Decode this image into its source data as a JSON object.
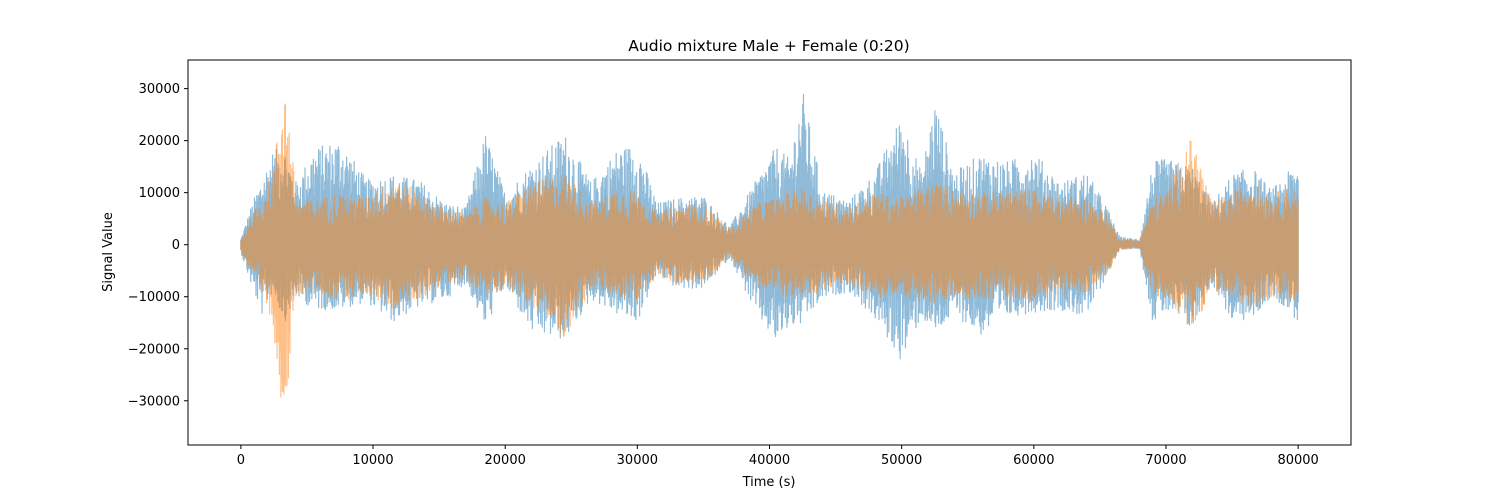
{
  "chart_data": {
    "type": "line",
    "title": "Audio mixture Male + Female (0:20)",
    "xlabel": "Time (s)",
    "ylabel": "Signal Value",
    "xlim": [
      -4000,
      84000
    ],
    "ylim": [
      -38500,
      35500
    ],
    "xticks": [
      0,
      10000,
      20000,
      30000,
      40000,
      50000,
      60000,
      70000,
      80000
    ],
    "yticks": [
      -30000,
      -20000,
      -10000,
      0,
      10000,
      20000,
      30000
    ],
    "grid": false,
    "legend": "none",
    "series": [
      {
        "color": "#1f77b4",
        "opacity": 0.5,
        "envelope_x": [
          0,
          800,
          1600,
          2400,
          3300,
          4200,
          5500,
          7500,
          9500,
          11500,
          13500,
          15500,
          17000,
          18500,
          20000,
          22000,
          24500,
          26500,
          28500,
          30000,
          31500,
          33000,
          35000,
          37000,
          39000,
          40500,
          41500,
          42500,
          44000,
          46000,
          48000,
          50000,
          51500,
          52500,
          54000,
          56000,
          58000,
          60000,
          62000,
          64000,
          65500,
          66500,
          68000,
          69000,
          70000,
          72000,
          73500,
          75000,
          76500,
          78000,
          79000,
          80000
        ],
        "envelope_max": [
          1200,
          7500,
          13000,
          18000,
          19000,
          12000,
          18500,
          20500,
          12500,
          13500,
          12500,
          8000,
          7000,
          21500,
          10000,
          15500,
          21500,
          12000,
          18500,
          19500,
          8000,
          9000,
          9500,
          3500,
          12500,
          19000,
          16500,
          30000,
          10500,
          8500,
          14000,
          25000,
          14000,
          28000,
          14000,
          17500,
          16000,
          18000,
          12000,
          14000,
          7500,
          1500,
          1000,
          16000,
          16500,
          15000,
          8000,
          13500,
          15000,
          10500,
          13500,
          15500
        ],
        "envelope_min": [
          -1500,
          -8000,
          -13500,
          -9000,
          -15000,
          -10000,
          -12500,
          -12500,
          -11000,
          -15000,
          -12000,
          -10500,
          -7500,
          -16000,
          -8000,
          -17000,
          -18500,
          -10500,
          -13500,
          -15000,
          -5500,
          -8500,
          -8500,
          -2500,
          -13500,
          -19000,
          -16000,
          -15500,
          -10500,
          -9000,
          -14500,
          -22500,
          -14000,
          -17500,
          -13500,
          -17500,
          -14000,
          -13000,
          -12500,
          -14000,
          -6000,
          -900,
          -700,
          -15000,
          -13000,
          -16500,
          -7500,
          -15000,
          -14500,
          -10000,
          -12000,
          -15000
        ]
      },
      {
        "color": "#ff7f0e",
        "opacity": 0.5,
        "envelope_x": [
          0,
          800,
          1600,
          2400,
          3300,
          4200,
          5500,
          7500,
          9500,
          11500,
          13500,
          15500,
          17000,
          18500,
          20000,
          22000,
          24500,
          26500,
          28500,
          30000,
          31500,
          33000,
          35000,
          37000,
          39000,
          40500,
          41500,
          42500,
          44000,
          46000,
          48000,
          50000,
          51500,
          52500,
          54000,
          56000,
          58000,
          60000,
          62000,
          64000,
          65500,
          66500,
          68000,
          69000,
          70000,
          72000,
          73500,
          75000,
          76500,
          78000,
          79000,
          80000
        ],
        "envelope_max": [
          900,
          5500,
          9000,
          14000,
          32000,
          9500,
          8500,
          10000,
          9000,
          13000,
          10000,
          7000,
          6000,
          9000,
          8000,
          12000,
          14000,
          8000,
          11000,
          10000,
          6000,
          7500,
          8000,
          3000,
          8000,
          9000,
          10000,
          11000,
          8500,
          7500,
          10000,
          9000,
          11000,
          12000,
          10500,
          10000,
          10500,
          10500,
          9500,
          9000,
          6000,
          1200,
          800,
          9000,
          10000,
          21000,
          8000,
          10000,
          12000,
          9500,
          11000,
          10500
        ],
        "envelope_min": [
          -1100,
          -6000,
          -9500,
          -15000,
          -35500,
          -10000,
          -9000,
          -11000,
          -9500,
          -12500,
          -10500,
          -7500,
          -6500,
          -9500,
          -8500,
          -12000,
          -18000,
          -8500,
          -10500,
          -11000,
          -6000,
          -8000,
          -7500,
          -2500,
          -8500,
          -9500,
          -10000,
          -11000,
          -9000,
          -7500,
          -10500,
          -9500,
          -11500,
          -11500,
          -10000,
          -10500,
          -10000,
          -11000,
          -9500,
          -9000,
          -6500,
          -900,
          -600,
          -10000,
          -10500,
          -16500,
          -8500,
          -10500,
          -12500,
          -10000,
          -11000,
          -11000
        ]
      }
    ]
  }
}
